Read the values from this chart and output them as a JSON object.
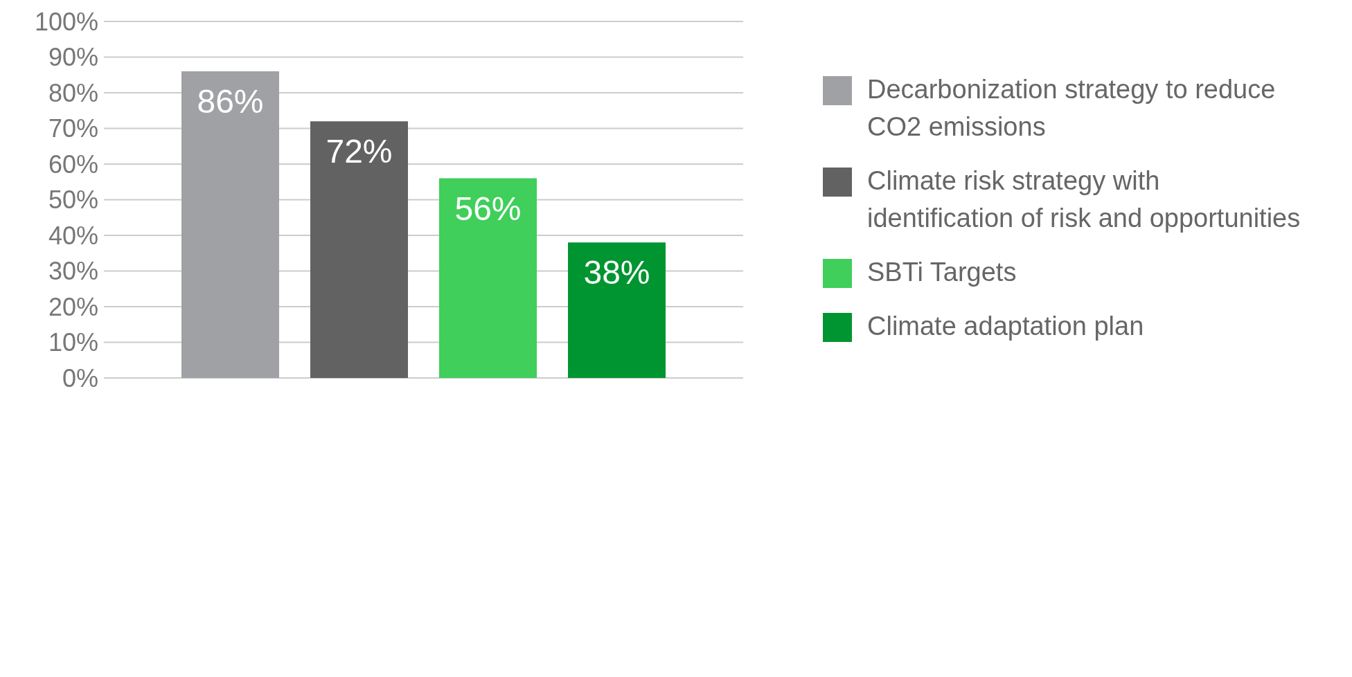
{
  "chart_data": {
    "type": "bar",
    "categories": [
      null
    ],
    "series": [
      {
        "name": "Decarbonization strategy to reduce CO2 emissions",
        "color": "#a0a1a4",
        "values": [
          86
        ],
        "value_labels": [
          "86%"
        ]
      },
      {
        "name": "Climate risk strategy with identification of risk and opportunities",
        "color": "#626262",
        "values": [
          72
        ],
        "value_labels": [
          "72%"
        ]
      },
      {
        "name": "SBTi Targets",
        "color": "#3fcf5a",
        "values": [
          56
        ],
        "value_labels": [
          "56%"
        ]
      },
      {
        "name": "Climate adaptation plan",
        "color": "#009530",
        "values": [
          38
        ],
        "value_labels": [
          "38%"
        ]
      }
    ],
    "ylim": [
      0,
      100
    ],
    "yticks": [
      {
        "value": 0,
        "label": "0%"
      },
      {
        "value": 10,
        "label": "10%"
      },
      {
        "value": 20,
        "label": "20%"
      },
      {
        "value": 30,
        "label": "30%"
      },
      {
        "value": 40,
        "label": "40%"
      },
      {
        "value": 50,
        "label": "50%"
      },
      {
        "value": 60,
        "label": "60%"
      },
      {
        "value": 70,
        "label": "70%"
      },
      {
        "value": 80,
        "label": "80%"
      },
      {
        "value": 90,
        "label": "90%"
      },
      {
        "value": 100,
        "label": "100%"
      }
    ],
    "grid": "y",
    "legend": "right"
  }
}
